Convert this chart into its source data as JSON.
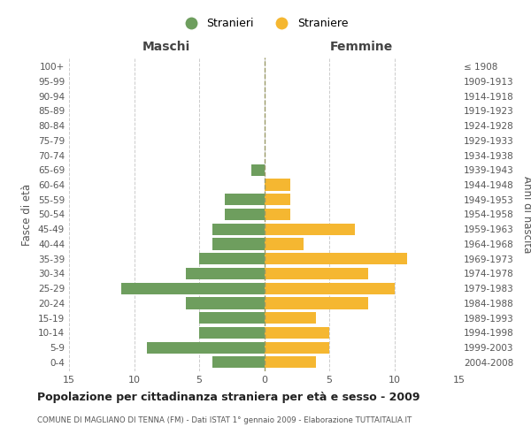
{
  "age_groups": [
    "0-4",
    "5-9",
    "10-14",
    "15-19",
    "20-24",
    "25-29",
    "30-34",
    "35-39",
    "40-44",
    "45-49",
    "50-54",
    "55-59",
    "60-64",
    "65-69",
    "70-74",
    "75-79",
    "80-84",
    "85-89",
    "90-94",
    "95-99",
    "100+"
  ],
  "birth_years": [
    "2004-2008",
    "1999-2003",
    "1994-1998",
    "1989-1993",
    "1984-1988",
    "1979-1983",
    "1974-1978",
    "1969-1973",
    "1964-1968",
    "1959-1963",
    "1954-1958",
    "1949-1953",
    "1944-1948",
    "1939-1943",
    "1934-1938",
    "1929-1933",
    "1924-1928",
    "1919-1923",
    "1914-1918",
    "1909-1913",
    "≤ 1908"
  ],
  "maschi": [
    4,
    9,
    5,
    5,
    6,
    11,
    6,
    5,
    4,
    4,
    3,
    3,
    0,
    1,
    0,
    0,
    0,
    0,
    0,
    0,
    0
  ],
  "femmine": [
    4,
    5,
    5,
    4,
    8,
    10,
    8,
    11,
    3,
    7,
    2,
    2,
    2,
    0,
    0,
    0,
    0,
    0,
    0,
    0,
    0
  ],
  "maschi_color": "#6e9e5e",
  "femmine_color": "#f5b731",
  "title": "Popolazione per cittadinanza straniera per età e sesso - 2009",
  "subtitle": "COMUNE DI MAGLIANO DI TENNA (FM) - Dati ISTAT 1° gennaio 2009 - Elaborazione TUTTAITALIA.IT",
  "xlabel_left": "Maschi",
  "xlabel_right": "Femmine",
  "ylabel_left": "Fasce di età",
  "ylabel_right": "Anni di nascita",
  "legend_maschi": "Stranieri",
  "legend_femmine": "Straniere",
  "xlim": 15,
  "background_color": "#ffffff",
  "grid_color": "#cccccc",
  "dashed_line_color": "#999966"
}
